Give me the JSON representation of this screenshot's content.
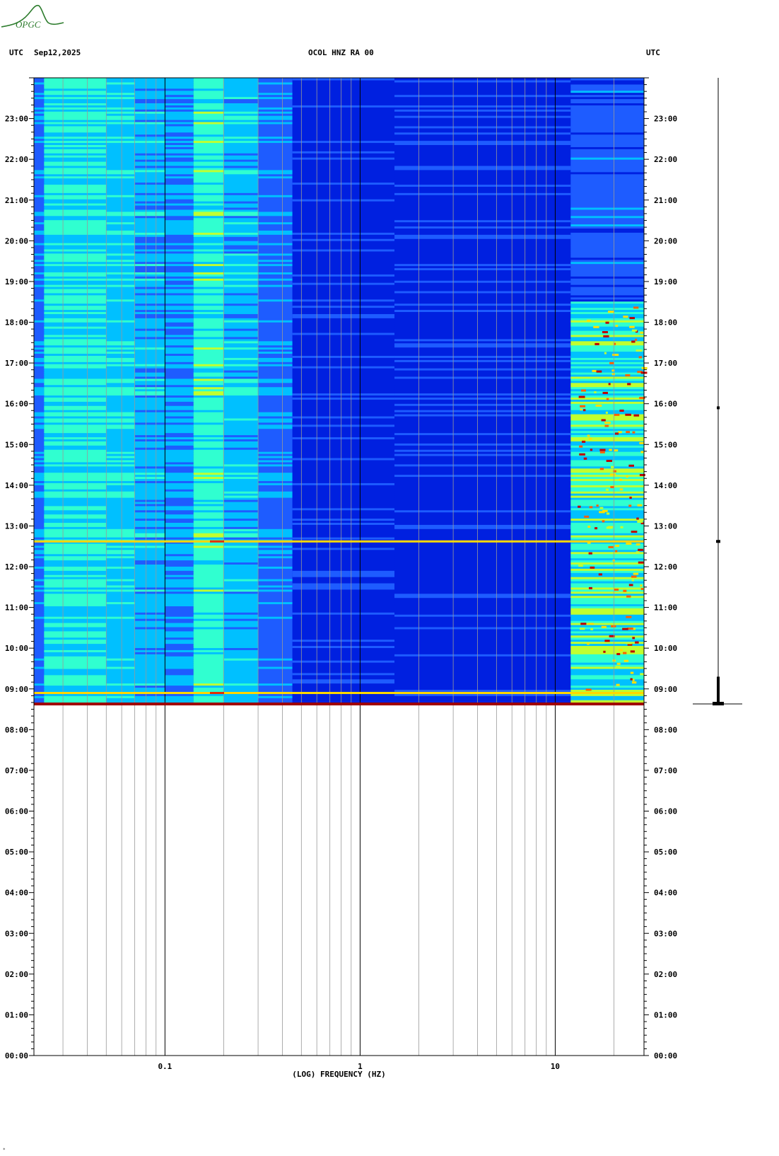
{
  "header": {
    "left_tz": "UTC",
    "date": "Sep12,2025",
    "station": "OCOL HNZ RA 00",
    "right_tz": "UTC"
  },
  "logo": {
    "text": "OPGC",
    "color": "#2d7c2d"
  },
  "footer_mark": "*",
  "chart_data": {
    "type": "heatmap",
    "title": "OCOL HNZ RA 00",
    "xlabel": "(LOG) FREQUENCY (HZ)",
    "x_scale": "log",
    "xlim": [
      0.0213,
      28.5
    ],
    "x_tick_labels": [
      {
        "value": 0.1,
        "label": "0.1"
      },
      {
        "value": 1,
        "label": "1"
      },
      {
        "value": 10,
        "label": "10"
      }
    ],
    "x_gridlines": [
      0.03,
      0.04,
      0.05,
      0.06,
      0.07,
      0.08,
      0.09,
      0.1,
      0.2,
      0.3,
      0.4,
      0.5,
      0.6,
      0.7,
      0.8,
      0.9,
      1,
      2,
      3,
      4,
      5,
      6,
      7,
      8,
      9,
      10,
      20
    ],
    "y_unit": "UTC hour",
    "ylim": [
      0,
      24
    ],
    "y_tick_labels": [
      "00:00",
      "01:00",
      "02:00",
      "03:00",
      "04:00",
      "05:00",
      "06:00",
      "07:00",
      "08:00",
      "09:00",
      "10:00",
      "11:00",
      "12:00",
      "13:00",
      "14:00",
      "15:00",
      "16:00",
      "17:00",
      "18:00",
      "19:00",
      "20:00",
      "21:00",
      "22:00",
      "23:00"
    ],
    "data_start_hour": 8.63,
    "events": [
      {
        "time_hour": 8.9,
        "note": "broadband line"
      },
      {
        "time_hour": 12.62,
        "note": "broadband line"
      }
    ],
    "colormap": [
      "#0000a0",
      "#0020e0",
      "#1e5cff",
      "#00c0ff",
      "#30ffd0",
      "#c0ff30",
      "#ffe000",
      "#ff6000",
      "#c00000"
    ],
    "start_marker_color": "#a00000",
    "grid_color": "#999999",
    "major_grid_color": "#000000"
  },
  "amplitude_trace": {
    "color": "#000000"
  }
}
